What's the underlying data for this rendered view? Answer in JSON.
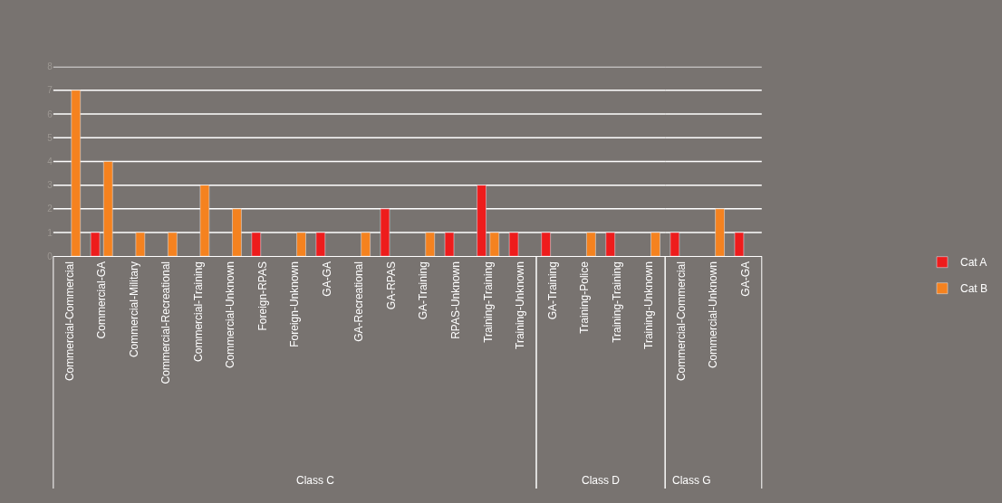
{
  "chart_data": [
    {
      "type": "bar",
      "xlabel": "Class C",
      "categories": [
        "Commercial-Commercial",
        "Commercial-GA",
        "Commercial-Military",
        "Commercial-Recreational",
        "Commercial-Training",
        "Commercial-Unknown",
        "Foreign-RPAS",
        "Foreign-Unknown",
        "GA-GA",
        "GA-Recreational",
        "GA-RPAS",
        "GA-Training",
        "RPAS-Unknown",
        "Training-Training",
        "Training-Unknown"
      ],
      "series": [
        {
          "name": "Cat A",
          "color": "#ee1c1c",
          "values": [
            null,
            1,
            null,
            null,
            null,
            null,
            1,
            null,
            1,
            null,
            2,
            null,
            1,
            3,
            1
          ]
        },
        {
          "name": "Cat B",
          "color": "#f5821f",
          "values": [
            7,
            4,
            1,
            1,
            3,
            2,
            null,
            1,
            null,
            1,
            null,
            1,
            null,
            1,
            null
          ]
        }
      ],
      "ylim": [
        0,
        8
      ],
      "yticks": [
        0,
        1,
        2,
        3,
        4,
        5,
        6,
        7,
        8
      ],
      "grid": "y",
      "legend": "right"
    },
    {
      "type": "bar",
      "xlabel": "Class D",
      "categories": [
        "GA-Training",
        "Training-Police",
        "Training-Training",
        "Training-Unknown"
      ],
      "series": [
        {
          "name": "Cat A",
          "color": "#ee1c1c",
          "values": [
            1,
            null,
            1,
            null
          ]
        },
        {
          "name": "Cat B",
          "color": "#f5821f",
          "values": [
            null,
            1,
            null,
            1
          ]
        }
      ],
      "ylim": [
        0,
        8
      ],
      "yticks": [
        0,
        1,
        2,
        3,
        4,
        5,
        6,
        7,
        8
      ],
      "grid": "y",
      "legend": "right",
      "tick_labels": "x"
    },
    {
      "type": "bar",
      "xlabel": "Class G",
      "categories": [
        "Commercial-Commercial",
        "Commercial-Unknown",
        "GA-GA"
      ],
      "series": [
        {
          "name": "Cat A",
          "color": "#ee1c1c",
          "values": [
            1,
            null,
            1
          ]
        },
        {
          "name": "Cat B",
          "color": "#f5821f",
          "values": [
            null,
            2,
            null
          ]
        }
      ],
      "ylim": [
        0,
        8
      ],
      "yticks": [
        0,
        1,
        2,
        3,
        4,
        5,
        6,
        7,
        8
      ],
      "grid": "y",
      "legend": "right",
      "tick_labels": "x"
    }
  ]
}
